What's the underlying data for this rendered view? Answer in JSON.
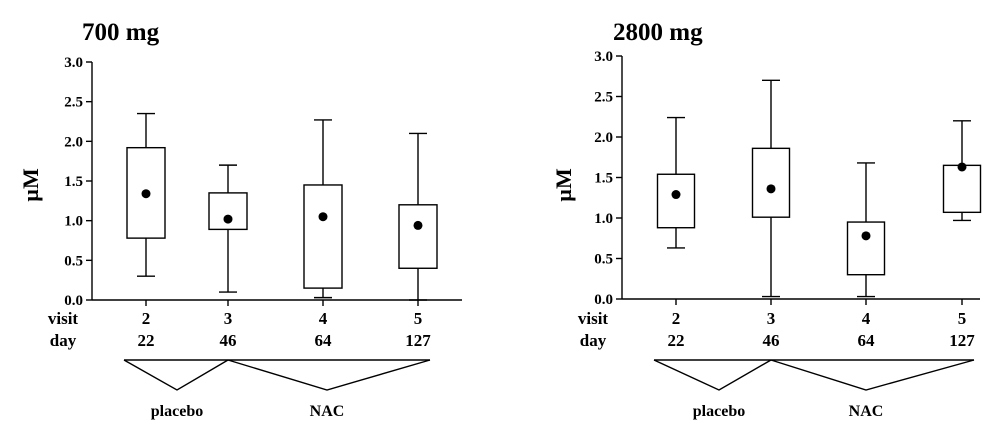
{
  "chart_data": [
    {
      "type": "box",
      "title": "700 mg",
      "ylabel": "µM",
      "ylim": [
        0,
        3.0
      ],
      "yticks": [
        "0.0",
        "0.5",
        "1.0",
        "1.5",
        "2.0",
        "2.5",
        "3.0"
      ],
      "row_labels": [
        "visit",
        "day"
      ],
      "visits": [
        "2",
        "3",
        "4",
        "5"
      ],
      "days": [
        "22",
        "46",
        "64",
        "127"
      ],
      "boxes": [
        {
          "visit": "2",
          "min": 0.3,
          "q1": 0.78,
          "q3": 1.92,
          "max": 2.35,
          "mean": 1.34
        },
        {
          "visit": "3",
          "min": 0.1,
          "q1": 0.89,
          "q3": 1.35,
          "max": 1.7,
          "mean": 1.02
        },
        {
          "visit": "4",
          "min": 0.03,
          "q1": 0.15,
          "q3": 1.45,
          "max": 2.27,
          "mean": 1.05
        },
        {
          "visit": "5",
          "min": 0.0,
          "q1": 0.4,
          "q3": 1.2,
          "max": 2.1,
          "mean": 0.94
        }
      ],
      "groups": [
        {
          "label": "placebo",
          "from_visit": 0,
          "to_visit": 1
        },
        {
          "label": "NAC",
          "from_visit": 1,
          "to_visit": 3
        }
      ]
    },
    {
      "type": "box",
      "title": "2800 mg",
      "ylabel": "µM",
      "ylim": [
        0,
        3.0
      ],
      "yticks": [
        "0.0",
        "0.5",
        "1.0",
        "1.5",
        "2.0",
        "2.5",
        "3.0"
      ],
      "row_labels": [
        "visit",
        "day"
      ],
      "visits": [
        "2",
        "3",
        "4",
        "5"
      ],
      "days": [
        "22",
        "46",
        "64",
        "127"
      ],
      "boxes": [
        {
          "visit": "2",
          "min": 0.63,
          "q1": 0.88,
          "q3": 1.54,
          "max": 2.24,
          "mean": 1.29
        },
        {
          "visit": "3",
          "min": 0.03,
          "q1": 1.01,
          "q3": 1.86,
          "max": 2.7,
          "mean": 1.36
        },
        {
          "visit": "4",
          "min": 0.03,
          "q1": 0.3,
          "q3": 0.95,
          "max": 1.68,
          "mean": 0.78
        },
        {
          "visit": "5",
          "min": 0.97,
          "q1": 1.07,
          "q3": 1.65,
          "max": 2.2,
          "mean": 1.63
        }
      ],
      "groups": [
        {
          "label": "placebo",
          "from_visit": 0,
          "to_visit": 1
        },
        {
          "label": "NAC",
          "from_visit": 1,
          "to_visit": 3
        }
      ]
    }
  ]
}
